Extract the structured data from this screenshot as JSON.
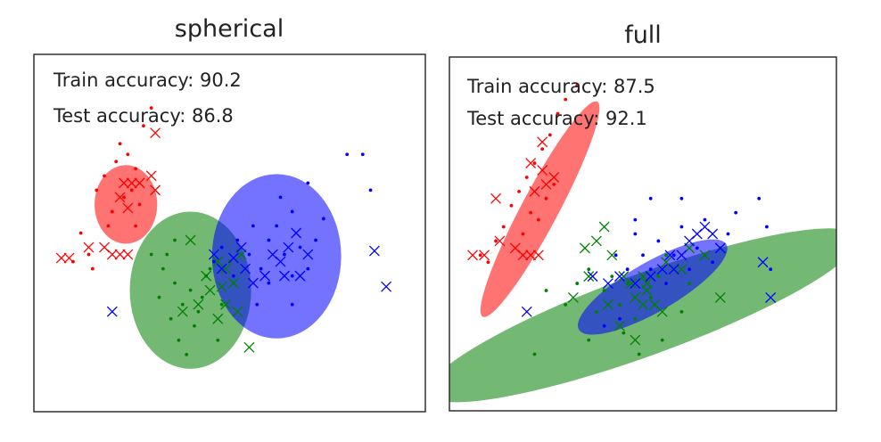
{
  "chart_data": [
    {
      "type": "scatter",
      "title": "spherical",
      "annotations": [
        "Train accuracy: 90.2",
        "Test accuracy: 86.8"
      ],
      "xlabel": "",
      "ylabel": "",
      "xlim": [
        0,
        100
      ],
      "ylim": [
        0,
        100
      ],
      "grid": false,
      "colors": {
        "class0": "#ff0000",
        "class1": "#008000",
        "class2": "#0000ff"
      },
      "ellipses": [
        {
          "class": "class0",
          "cx": 23.5,
          "cy": 58,
          "rx": 8,
          "ry": 11,
          "angle": 0
        },
        {
          "class": "class1",
          "cx": 40,
          "cy": 34,
          "rx": 15.5,
          "ry": 22,
          "angle": 0
        },
        {
          "class": "class2",
          "cx": 62,
          "cy": 43.5,
          "rx": 16.5,
          "ry": 23,
          "angle": 0
        }
      ],
      "train_points": {
        "class0": [
          [
            10,
            42
          ],
          [
            12,
            50
          ],
          [
            14,
            44
          ],
          [
            16,
            62
          ],
          [
            18,
            66
          ],
          [
            21,
            70
          ],
          [
            22,
            75
          ],
          [
            24,
            72
          ],
          [
            26,
            68
          ],
          [
            28,
            80
          ],
          [
            30,
            85
          ],
          [
            25,
            62
          ],
          [
            20,
            56
          ],
          [
            23,
            60
          ],
          [
            27,
            58
          ],
          [
            19,
            52
          ],
          [
            26,
            52
          ],
          [
            15,
            40
          ]
        ],
        "class1": [
          [
            30,
            44
          ],
          [
            33,
            40
          ],
          [
            36,
            36
          ],
          [
            38,
            30
          ],
          [
            40,
            34
          ],
          [
            42,
            28
          ],
          [
            44,
            38
          ],
          [
            35,
            26
          ],
          [
            37,
            20
          ],
          [
            39,
            16
          ],
          [
            41,
            24
          ],
          [
            43,
            32
          ],
          [
            45,
            40
          ],
          [
            47,
            20
          ],
          [
            34,
            44
          ],
          [
            32,
            32
          ],
          [
            48,
            30
          ],
          [
            50,
            42
          ],
          [
            36,
            48
          ]
        ],
        "class2": [
          [
            46,
            42
          ],
          [
            48,
            46
          ],
          [
            52,
            48
          ],
          [
            55,
            44
          ],
          [
            58,
            40
          ],
          [
            60,
            48
          ],
          [
            62,
            52
          ],
          [
            64,
            44
          ],
          [
            66,
            38
          ],
          [
            68,
            46
          ],
          [
            70,
            40
          ],
          [
            72,
            48
          ],
          [
            74,
            54
          ],
          [
            56,
            52
          ],
          [
            60,
            36
          ],
          [
            63,
            60
          ],
          [
            66,
            56
          ],
          [
            70,
            64
          ],
          [
            57,
            30
          ],
          [
            51,
            38
          ],
          [
            66,
            30
          ],
          [
            80,
            72
          ],
          [
            84,
            72
          ],
          [
            86,
            62
          ]
        ]
      },
      "test_points": {
        "class0": [
          [
            7,
            43
          ],
          [
            9,
            43
          ],
          [
            14,
            46
          ],
          [
            18,
            46
          ],
          [
            20,
            44
          ],
          [
            22,
            44
          ],
          [
            24,
            44
          ],
          [
            23,
            64
          ],
          [
            25,
            64
          ],
          [
            27,
            64
          ],
          [
            22,
            60
          ],
          [
            24,
            57
          ],
          [
            30,
            66
          ],
          [
            31,
            78
          ],
          [
            31,
            62
          ]
        ],
        "class1": [
          [
            40,
            48
          ],
          [
            44,
            38
          ],
          [
            45,
            34
          ],
          [
            48,
            35
          ],
          [
            49,
            30
          ],
          [
            51,
            36
          ],
          [
            47,
            42
          ],
          [
            53,
            44
          ],
          [
            38,
            28
          ],
          [
            42,
            30
          ],
          [
            52,
            28
          ],
          [
            47,
            26
          ],
          [
            55,
            18
          ],
          [
            49,
            40
          ]
        ],
        "class2": [
          [
            20,
            28
          ],
          [
            46,
            44
          ],
          [
            48,
            40
          ],
          [
            51,
            43
          ],
          [
            53,
            46
          ],
          [
            54,
            40
          ],
          [
            56,
            36
          ],
          [
            59,
            38
          ],
          [
            61,
            44
          ],
          [
            63,
            42
          ],
          [
            65,
            46
          ],
          [
            67,
            50
          ],
          [
            70,
            44
          ],
          [
            64,
            38
          ],
          [
            68,
            38
          ],
          [
            87,
            45
          ],
          [
            90,
            35
          ]
        ]
      }
    },
    {
      "type": "scatter",
      "title": "full",
      "annotations": [
        "Train accuracy: 87.5",
        "Test accuracy: 92.1"
      ],
      "xlabel": "",
      "ylabel": "",
      "xlim": [
        0,
        100
      ],
      "ylim": [
        0,
        100
      ],
      "grid": false,
      "colors": {
        "class0": "#ff0000",
        "class1": "#008000",
        "class2": "#0000ff"
      },
      "ellipses": [
        {
          "class": "class0",
          "cx": 23.4,
          "cy": 57,
          "rx": 31.5,
          "ry": 5.2,
          "angle": -62
        },
        {
          "class": "class1",
          "cx": 50,
          "cy": 27,
          "rx": 59,
          "ry": 11.5,
          "angle": -20
        },
        {
          "class": "class2",
          "cx": 52.5,
          "cy": 35,
          "rx": 22,
          "ry": 7,
          "angle": -30
        }
      ],
      "train_points": {
        "class0": [
          [
            8,
            44
          ],
          [
            12,
            48
          ],
          [
            14,
            52
          ],
          [
            16,
            58
          ],
          [
            18,
            62
          ],
          [
            20,
            66
          ],
          [
            22,
            70
          ],
          [
            24,
            74
          ],
          [
            26,
            78
          ],
          [
            28,
            84
          ],
          [
            30,
            88
          ],
          [
            33,
            92
          ],
          [
            21,
            56
          ],
          [
            25,
            60
          ],
          [
            19,
            50
          ],
          [
            27,
            64
          ],
          [
            23,
            54
          ],
          [
            10,
            42
          ]
        ],
        "class1": [
          [
            25,
            34
          ],
          [
            30,
            30
          ],
          [
            33,
            36
          ],
          [
            36,
            40
          ],
          [
            38,
            28
          ],
          [
            40,
            34
          ],
          [
            42,
            38
          ],
          [
            44,
            30
          ],
          [
            46,
            36
          ],
          [
            48,
            26
          ],
          [
            52,
            32
          ],
          [
            54,
            38
          ],
          [
            56,
            44
          ],
          [
            58,
            40
          ],
          [
            60,
            28
          ],
          [
            62,
            36
          ],
          [
            66,
            44
          ],
          [
            70,
            46
          ],
          [
            45,
            22
          ],
          [
            49,
            16
          ],
          [
            36,
            20
          ],
          [
            22,
            16
          ],
          [
            55,
            20
          ]
        ],
        "class2": [
          [
            43,
            44
          ],
          [
            46,
            40
          ],
          [
            48,
            50
          ],
          [
            50,
            44
          ],
          [
            52,
            40
          ],
          [
            54,
            48
          ],
          [
            56,
            36
          ],
          [
            58,
            44
          ],
          [
            60,
            52
          ],
          [
            62,
            40
          ],
          [
            64,
            46
          ],
          [
            66,
            54
          ],
          [
            68,
            42
          ],
          [
            72,
            50
          ],
          [
            74,
            56
          ],
          [
            52,
            60
          ],
          [
            48,
            54
          ],
          [
            60,
            60
          ],
          [
            80,
            60
          ],
          [
            82,
            52
          ],
          [
            83,
            40
          ],
          [
            40,
            24
          ],
          [
            44,
            26
          ]
        ]
      },
      "test_points": {
        "class0": [
          [
            6,
            44
          ],
          [
            9,
            44
          ],
          [
            13,
            48
          ],
          [
            17,
            46
          ],
          [
            19,
            44
          ],
          [
            21,
            44
          ],
          [
            23,
            44
          ],
          [
            22,
            62
          ],
          [
            25,
            64
          ],
          [
            27,
            66
          ],
          [
            24,
            68
          ],
          [
            21,
            70
          ],
          [
            12,
            60
          ],
          [
            24,
            76
          ]
        ],
        "class1": [
          [
            35,
            46
          ],
          [
            38,
            48
          ],
          [
            40,
            52
          ],
          [
            42,
            44
          ],
          [
            45,
            38
          ],
          [
            47,
            36
          ],
          [
            51,
            34
          ],
          [
            56,
            42
          ],
          [
            60,
            40
          ],
          [
            62,
            46
          ],
          [
            66,
            44
          ],
          [
            70,
            32
          ],
          [
            36,
            38
          ],
          [
            50,
            38
          ],
          [
            44,
            24
          ],
          [
            53,
            30
          ],
          [
            48,
            20
          ],
          [
            32,
            32
          ],
          [
            50,
            30
          ],
          [
            41,
            30
          ],
          [
            48,
            32
          ],
          [
            51,
            36
          ],
          [
            55,
            28
          ]
        ],
        "class2": [
          [
            20,
            28
          ],
          [
            37,
            38
          ],
          [
            41,
            36
          ],
          [
            44,
            38
          ],
          [
            48,
            36
          ],
          [
            52,
            38
          ],
          [
            55,
            40
          ],
          [
            58,
            40
          ],
          [
            60,
            44
          ],
          [
            62,
            48
          ],
          [
            64,
            50
          ],
          [
            66,
            52
          ],
          [
            68,
            50
          ],
          [
            70,
            46
          ],
          [
            57,
            44
          ],
          [
            81,
            42
          ],
          [
            83,
            32
          ]
        ]
      }
    }
  ]
}
